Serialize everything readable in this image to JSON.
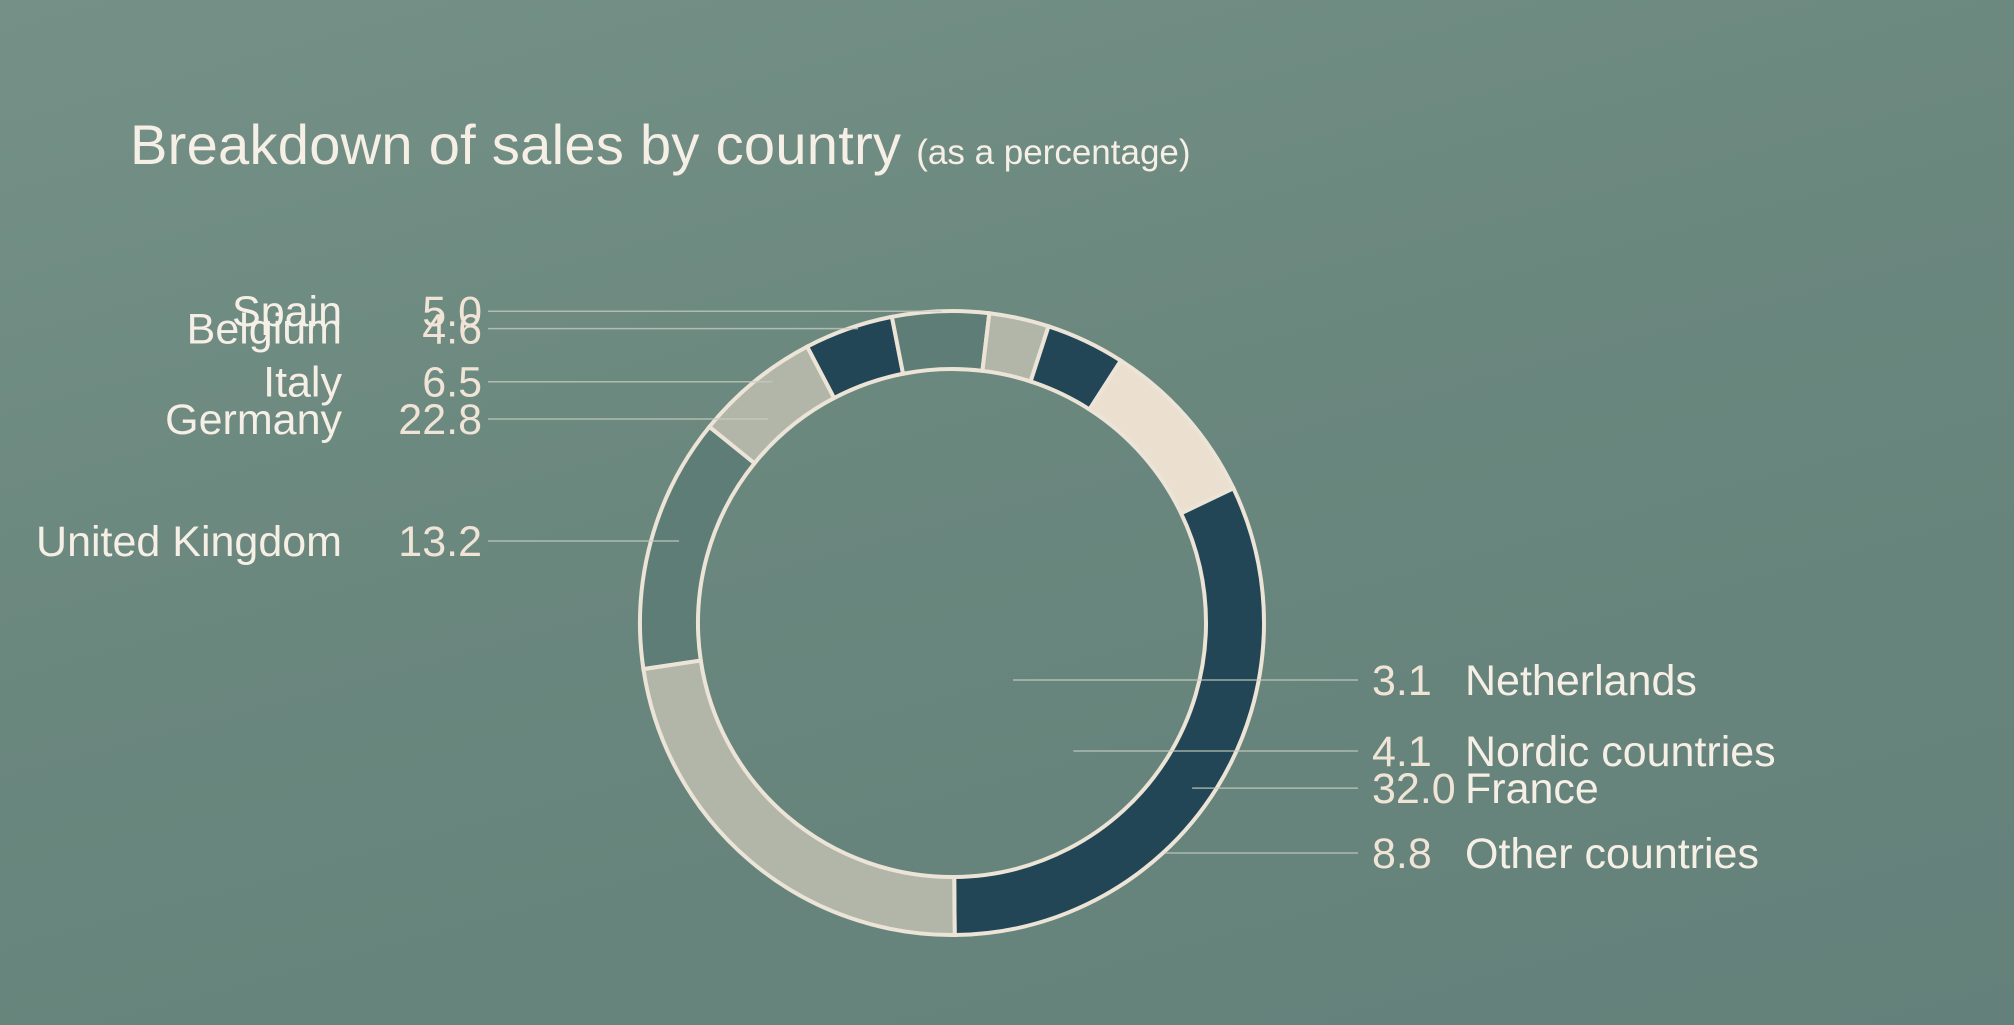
{
  "title": {
    "main": "Breakdown of sales by country",
    "sub": "(as a percentage)"
  },
  "colors": {
    "background": "#6a877e",
    "dark_teal": "#224655",
    "light_gray": "#b1b6a9",
    "mid_teal": "#5d7d76",
    "cream": "#ebdfd0",
    "outline": "#ece4d6"
  },
  "chart_data": {
    "type": "pie",
    "variant": "donut",
    "title": "Breakdown of sales by country",
    "subtitle": "(as a percentage)",
    "unit": "%",
    "slices": [
      {
        "label": "United Kingdom",
        "value": 13.2,
        "value_text": "13.2",
        "color": "#5d7d76"
      },
      {
        "label": "Italy",
        "value": 6.5,
        "value_text": "6.5",
        "color": "#b1b6a9"
      },
      {
        "label": "Belgium",
        "value": 4.6,
        "value_text": "4.6",
        "color": "#224655"
      },
      {
        "label": "Spain",
        "value": 5.0,
        "value_text": "5.0",
        "color": "#5d7d76"
      },
      {
        "label": "Netherlands",
        "value": 3.1,
        "value_text": "3.1",
        "color": "#b1b6a9"
      },
      {
        "label": "Nordic countries",
        "value": 4.1,
        "value_text": "4.1",
        "color": "#224655"
      },
      {
        "label": "Other countries",
        "value": 8.8,
        "value_text": "8.8",
        "color": "#ebdfd0"
      },
      {
        "label": "France",
        "value": 32.0,
        "value_text": "32.0",
        "color": "#224655"
      },
      {
        "label": "Germany",
        "value": 22.8,
        "value_text": "22.8",
        "color": "#b1b6a9"
      }
    ],
    "legend_placement": "labels beside chart with leader lines (right side and left side)",
    "grid": false
  }
}
